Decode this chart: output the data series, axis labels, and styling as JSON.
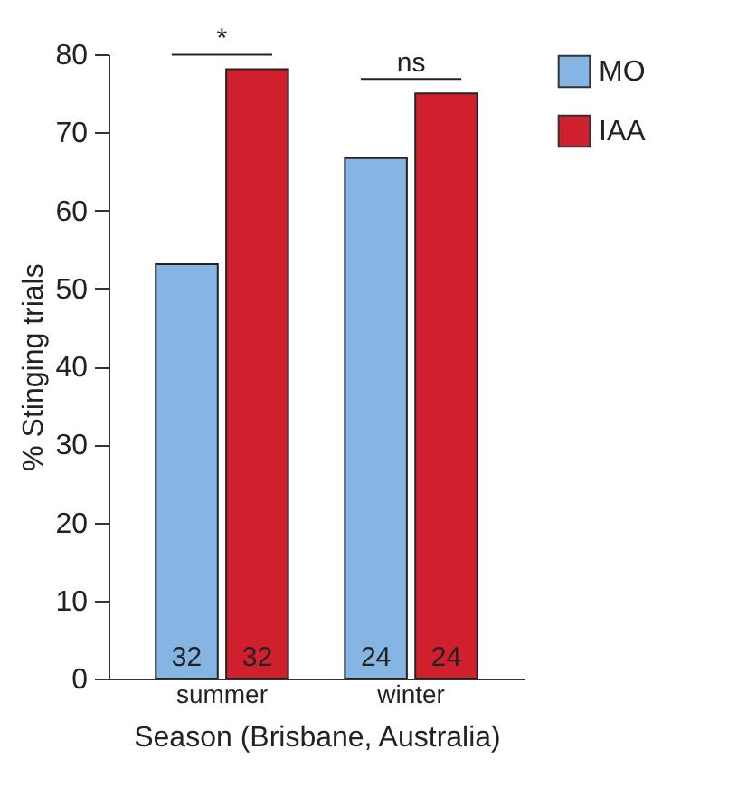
{
  "chart_data": {
    "type": "bar",
    "xlabel": "Season (Brisbane, Australia)",
    "ylabel": "% Stinging trials",
    "categories": [
      "summer",
      "winter"
    ],
    "series": [
      {
        "name": "MO",
        "color": "#84b5e3",
        "values": [
          53.1,
          66.7
        ]
      },
      {
        "name": "IAA",
        "color": "#d0202e",
        "values": [
          78.1,
          75.0
        ]
      }
    ],
    "ylim": [
      0,
      80
    ],
    "yticks": [
      0,
      10,
      20,
      30,
      40,
      50,
      60,
      70,
      80
    ],
    "grid": false,
    "legend": "top right",
    "annotations": [
      "*",
      "ns",
      "32",
      "32",
      "24",
      "24"
    ]
  }
}
